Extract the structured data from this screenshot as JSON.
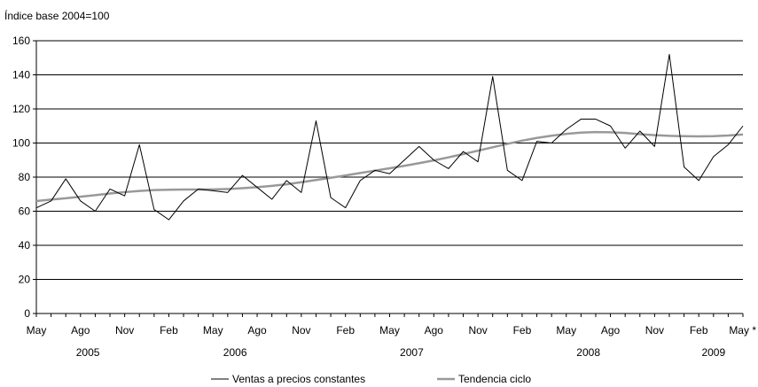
{
  "chart_data": {
    "type": "line",
    "title": "",
    "ylabel": "Índice base 2004=100",
    "xlabel": "",
    "ylim": [
      0,
      160
    ],
    "yticks": [
      0,
      20,
      40,
      60,
      80,
      100,
      120,
      140,
      160
    ],
    "grid": "horizontal",
    "legend_position": "bottom",
    "x_month_labels": [
      {
        "label": "May",
        "index": 0
      },
      {
        "label": "Ago",
        "index": 3
      },
      {
        "label": "Nov",
        "index": 6
      },
      {
        "label": "Feb",
        "index": 9
      },
      {
        "label": "May",
        "index": 12
      },
      {
        "label": "Ago",
        "index": 15
      },
      {
        "label": "Nov",
        "index": 18
      },
      {
        "label": "Feb",
        "index": 21
      },
      {
        "label": "May",
        "index": 24
      },
      {
        "label": "Ago",
        "index": 27
      },
      {
        "label": "Nov",
        "index": 30
      },
      {
        "label": "Feb",
        "index": 33
      },
      {
        "label": "May",
        "index": 36
      },
      {
        "label": "Ago",
        "index": 39
      },
      {
        "label": "Nov",
        "index": 42
      },
      {
        "label": "Feb",
        "index": 45
      },
      {
        "label": "May *",
        "index": 48
      }
    ],
    "x_year_labels": [
      {
        "label": "2005",
        "index": 3.5
      },
      {
        "label": "2006",
        "index": 13.5
      },
      {
        "label": "2007",
        "index": 25.5
      },
      {
        "label": "2008",
        "index": 37.5
      },
      {
        "label": "2009",
        "index": 46
      }
    ],
    "x": [
      "2005-05",
      "2005-06",
      "2005-07",
      "2005-08",
      "2005-09",
      "2005-10",
      "2005-11",
      "2005-12",
      "2006-01",
      "2006-02",
      "2006-03",
      "2006-04",
      "2006-05",
      "2006-06",
      "2006-07",
      "2006-08",
      "2006-09",
      "2006-10",
      "2006-11",
      "2006-12",
      "2007-01",
      "2007-02",
      "2007-03",
      "2007-04",
      "2007-05",
      "2007-06",
      "2007-07",
      "2007-08",
      "2007-09",
      "2007-10",
      "2007-11",
      "2007-12",
      "2008-01",
      "2008-02",
      "2008-03",
      "2008-04",
      "2008-05",
      "2008-06",
      "2008-07",
      "2008-08",
      "2008-09",
      "2008-10",
      "2008-11",
      "2008-12",
      "2009-01",
      "2009-02",
      "2009-03",
      "2009-04",
      "2009-05"
    ],
    "series": [
      {
        "name": "Ventas a precios constantes",
        "color": "#000000",
        "values": [
          62,
          66,
          79,
          66,
          60,
          73,
          69,
          99,
          61,
          55,
          66,
          73,
          72,
          71,
          81,
          74,
          67,
          78,
          71,
          113,
          68,
          62,
          78,
          84,
          82,
          90,
          98,
          90,
          85,
          95,
          89,
          139,
          84,
          78,
          101,
          100,
          108,
          114,
          114,
          110,
          97,
          107,
          98,
          152,
          86,
          78,
          92,
          99,
          110
        ]
      },
      {
        "name": "Tendencia ciclo",
        "color": "#999999",
        "values": [
          66,
          66.8,
          67.6,
          68.5,
          69.4,
          70.4,
          71.2,
          71.9,
          72.4,
          72.6,
          72.7,
          72.7,
          72.8,
          73.0,
          73.5,
          74.1,
          74.9,
          75.8,
          77.0,
          78.3,
          79.6,
          81.0,
          82.4,
          83.8,
          85.2,
          86.6,
          88.2,
          89.8,
          91.6,
          93.5,
          95.5,
          97.5,
          99.5,
          101.4,
          103.0,
          104.3,
          105.4,
          106.1,
          106.4,
          106.3,
          105.9,
          105.2,
          104.6,
          104.2,
          104.0,
          103.9,
          104.0,
          104.4,
          105.0
        ]
      }
    ]
  }
}
